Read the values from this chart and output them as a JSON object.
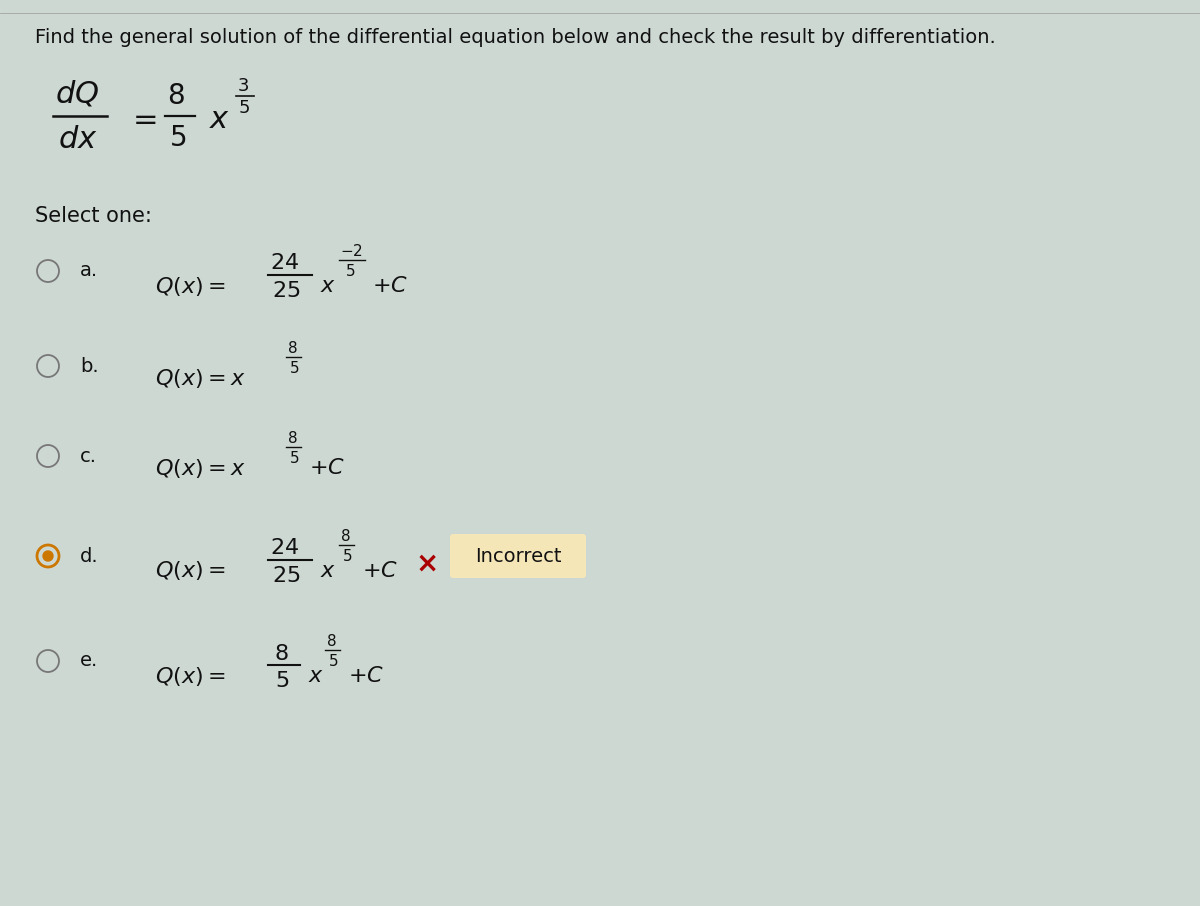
{
  "bg_color": "#cdd8d3",
  "title": "Find the general solution of the differential equation below and check the result by differentiation.",
  "title_fontsize": 14,
  "select_one": "Select one:",
  "incorrect_label": "Incorrect",
  "incorrect_bg": "#f5e6b8",
  "incorrect_x_color": "#aa0000",
  "text_color": "#111111",
  "radio_color": "#777777",
  "selected_radio_color": "#cc7700",
  "border_color": "#aaaaaa"
}
